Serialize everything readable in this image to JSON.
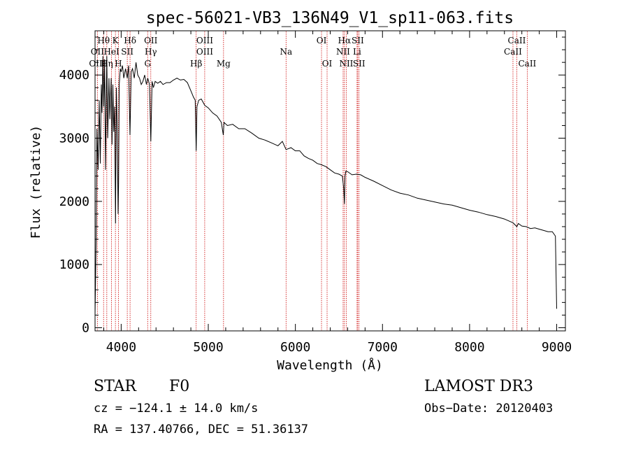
{
  "chart_data": {
    "type": "line",
    "title": "spec-56021-VB3_136N49_V1_sp11-063.fits",
    "xlabel": "Wavelength (Å)",
    "ylabel": "Flux (relative)",
    "xlim": [
      3700,
      9100
    ],
    "ylim": [
      -50,
      4700
    ],
    "x_ticks": [
      4000,
      5000,
      6000,
      7000,
      8000,
      9000
    ],
    "y_ticks": [
      0,
      1000,
      2000,
      3000,
      4000
    ],
    "series": [
      {
        "name": "flux",
        "x": [
          3700,
          3712,
          3722,
          3735,
          3748,
          3760,
          3772,
          3780,
          3790,
          3800,
          3810,
          3820,
          3835,
          3845,
          3860,
          3870,
          3885,
          3895,
          3905,
          3915,
          3925,
          3935,
          3945,
          3955,
          3965,
          3970,
          3978,
          3990,
          4000,
          4015,
          4030,
          4050,
          4070,
          4085,
          4101,
          4115,
          4130,
          4150,
          4170,
          4190,
          4210,
          4230,
          4250,
          4270,
          4290,
          4305,
          4325,
          4340,
          4355,
          4370,
          4390,
          4420,
          4450,
          4480,
          4520,
          4560,
          4600,
          4640,
          4680,
          4720,
          4760,
          4800,
          4830,
          4850,
          4861,
          4870,
          4890,
          4920,
          4960,
          5000,
          5050,
          5100,
          5150,
          5172,
          5180,
          5220,
          5280,
          5350,
          5420,
          5500,
          5580,
          5650,
          5720,
          5800,
          5850,
          5893,
          5950,
          6000,
          6050,
          6100,
          6150,
          6200,
          6250,
          6300,
          6350,
          6400,
          6450,
          6500,
          6540,
          6555,
          6563,
          6570,
          6580,
          6600,
          6650,
          6700,
          6750,
          6800,
          6900,
          7000,
          7100,
          7200,
          7300,
          7400,
          7500,
          7600,
          7700,
          7800,
          7900,
          8000,
          8100,
          8200,
          8300,
          8400,
          8500,
          8542,
          8560,
          8600,
          8650,
          8700,
          8750,
          8800,
          8850,
          8900,
          8950,
          8985,
          9000
        ],
        "values": [
          200,
          1350,
          3150,
          2500,
          3600,
          2600,
          3850,
          3400,
          4300,
          3500,
          4250,
          2500,
          4300,
          3000,
          3950,
          3300,
          3950,
          2900,
          3850,
          3100,
          3500,
          1650,
          3800,
          3100,
          1800,
          2300,
          3850,
          4100,
          4050,
          4150,
          3950,
          4100,
          3950,
          4150,
          3050,
          4050,
          4100,
          3950,
          4200,
          4000,
          3950,
          3850,
          3900,
          4000,
          3850,
          3950,
          3850,
          2950,
          3900,
          3800,
          3900,
          3870,
          3900,
          3850,
          3880,
          3880,
          3920,
          3950,
          3920,
          3930,
          3880,
          3750,
          3650,
          3600,
          2800,
          3500,
          3600,
          3620,
          3520,
          3480,
          3400,
          3350,
          3250,
          3050,
          3250,
          3200,
          3220,
          3150,
          3150,
          3080,
          3000,
          2970,
          2930,
          2880,
          2950,
          2820,
          2850,
          2800,
          2800,
          2720,
          2680,
          2650,
          2600,
          2580,
          2550,
          2500,
          2450,
          2430,
          2400,
          2200,
          1960,
          2400,
          2480,
          2470,
          2420,
          2430,
          2420,
          2380,
          2320,
          2250,
          2180,
          2130,
          2100,
          2050,
          2020,
          1990,
          1960,
          1940,
          1900,
          1860,
          1830,
          1790,
          1760,
          1720,
          1660,
          1600,
          1650,
          1610,
          1600,
          1570,
          1580,
          1560,
          1540,
          1520,
          1520,
          1450,
          300
        ]
      }
    ],
    "spectral_lines": [
      {
        "label": "Hθ",
        "x": 3798,
        "row": 1
      },
      {
        "label": "K",
        "x": 3934,
        "row": 1
      },
      {
        "label": "Hδ",
        "x": 4102,
        "row": 1
      },
      {
        "label": "OII",
        "x": 4340,
        "row": 1
      },
      {
        "label": "OIII",
        "x": 4959,
        "row": 1
      },
      {
        "label": "OI",
        "x": 6300,
        "row": 1
      },
      {
        "label": "Hα",
        "x": 6563,
        "row": 1
      },
      {
        "label": "SII",
        "x": 6716,
        "row": 1
      },
      {
        "label": "CaII",
        "x": 8542,
        "row": 1
      },
      {
        "label": "OII",
        "x": 3727,
        "row": 2
      },
      {
        "label": "HeI",
        "x": 3889,
        "row": 2
      },
      {
        "label": "SII",
        "x": 4070,
        "row": 2
      },
      {
        "label": "Hγ",
        "x": 4340,
        "row": 2
      },
      {
        "label": "OIII",
        "x": 4959,
        "row": 2
      },
      {
        "label": "Na",
        "x": 5893,
        "row": 2
      },
      {
        "label": "NII",
        "x": 6548,
        "row": 2
      },
      {
        "label": "Li",
        "x": 6708,
        "row": 2
      },
      {
        "label": "CaII",
        "x": 8498,
        "row": 2
      },
      {
        "label": "OIII",
        "x": 3727,
        "row": 3
      },
      {
        "label": "Hη",
        "x": 3835,
        "row": 3
      },
      {
        "label": "H",
        "x": 3968,
        "row": 3
      },
      {
        "label": "G",
        "x": 4304,
        "row": 3
      },
      {
        "label": "Hβ",
        "x": 4861,
        "row": 3
      },
      {
        "label": "Mg",
        "x": 5175,
        "row": 3
      },
      {
        "label": "OI",
        "x": 6364,
        "row": 3
      },
      {
        "label": "NII",
        "x": 6584,
        "row": 3
      },
      {
        "label": "SII",
        "x": 6731,
        "row": 3
      },
      {
        "label": "CaII",
        "x": 8662,
        "row": 3
      }
    ],
    "line_marker_color": "#cc0000"
  },
  "info": {
    "object_class": "STAR",
    "subclass": "F0",
    "survey": "LAMOST DR3",
    "cz": "cz = −124.1 ± 14.0 km/s",
    "obs_date": "Obs−Date: 20120403",
    "coords": "RA = 137.40766, DEC =  51.36137"
  }
}
